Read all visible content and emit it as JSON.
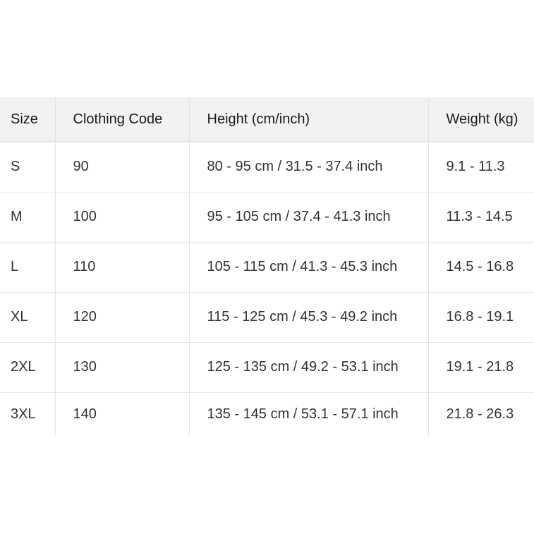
{
  "table": {
    "headers": [
      "Size",
      "Clothing Code",
      "Height (cm/inch)",
      "Weight (kg)"
    ],
    "rows": [
      [
        "S",
        "90",
        "80 - 95 cm / 31.5 - 37.4 inch",
        "9.1 - 11.3"
      ],
      [
        "M",
        "100",
        "95 - 105 cm / 37.4 - 41.3 inch",
        "11.3 - 14.5"
      ],
      [
        "L",
        "110",
        "105 - 115 cm / 41.3 - 45.3 inch",
        "14.5 - 16.8"
      ],
      [
        "XL",
        "120",
        "115 - 125 cm / 45.3 - 49.2 inch",
        "16.8 - 19.1"
      ],
      [
        "2XL",
        "130",
        "125 - 135 cm / 49.2 - 53.1 inch",
        "19.1 - 21.8"
      ],
      [
        "3XL",
        "140",
        "135 - 145 cm / 53.1 - 57.1 inch",
        "21.8 - 26.3"
      ]
    ]
  },
  "colors": {
    "header_bg": "#f2f2f2",
    "border": "#e4e4e4",
    "text": "#333333"
  }
}
